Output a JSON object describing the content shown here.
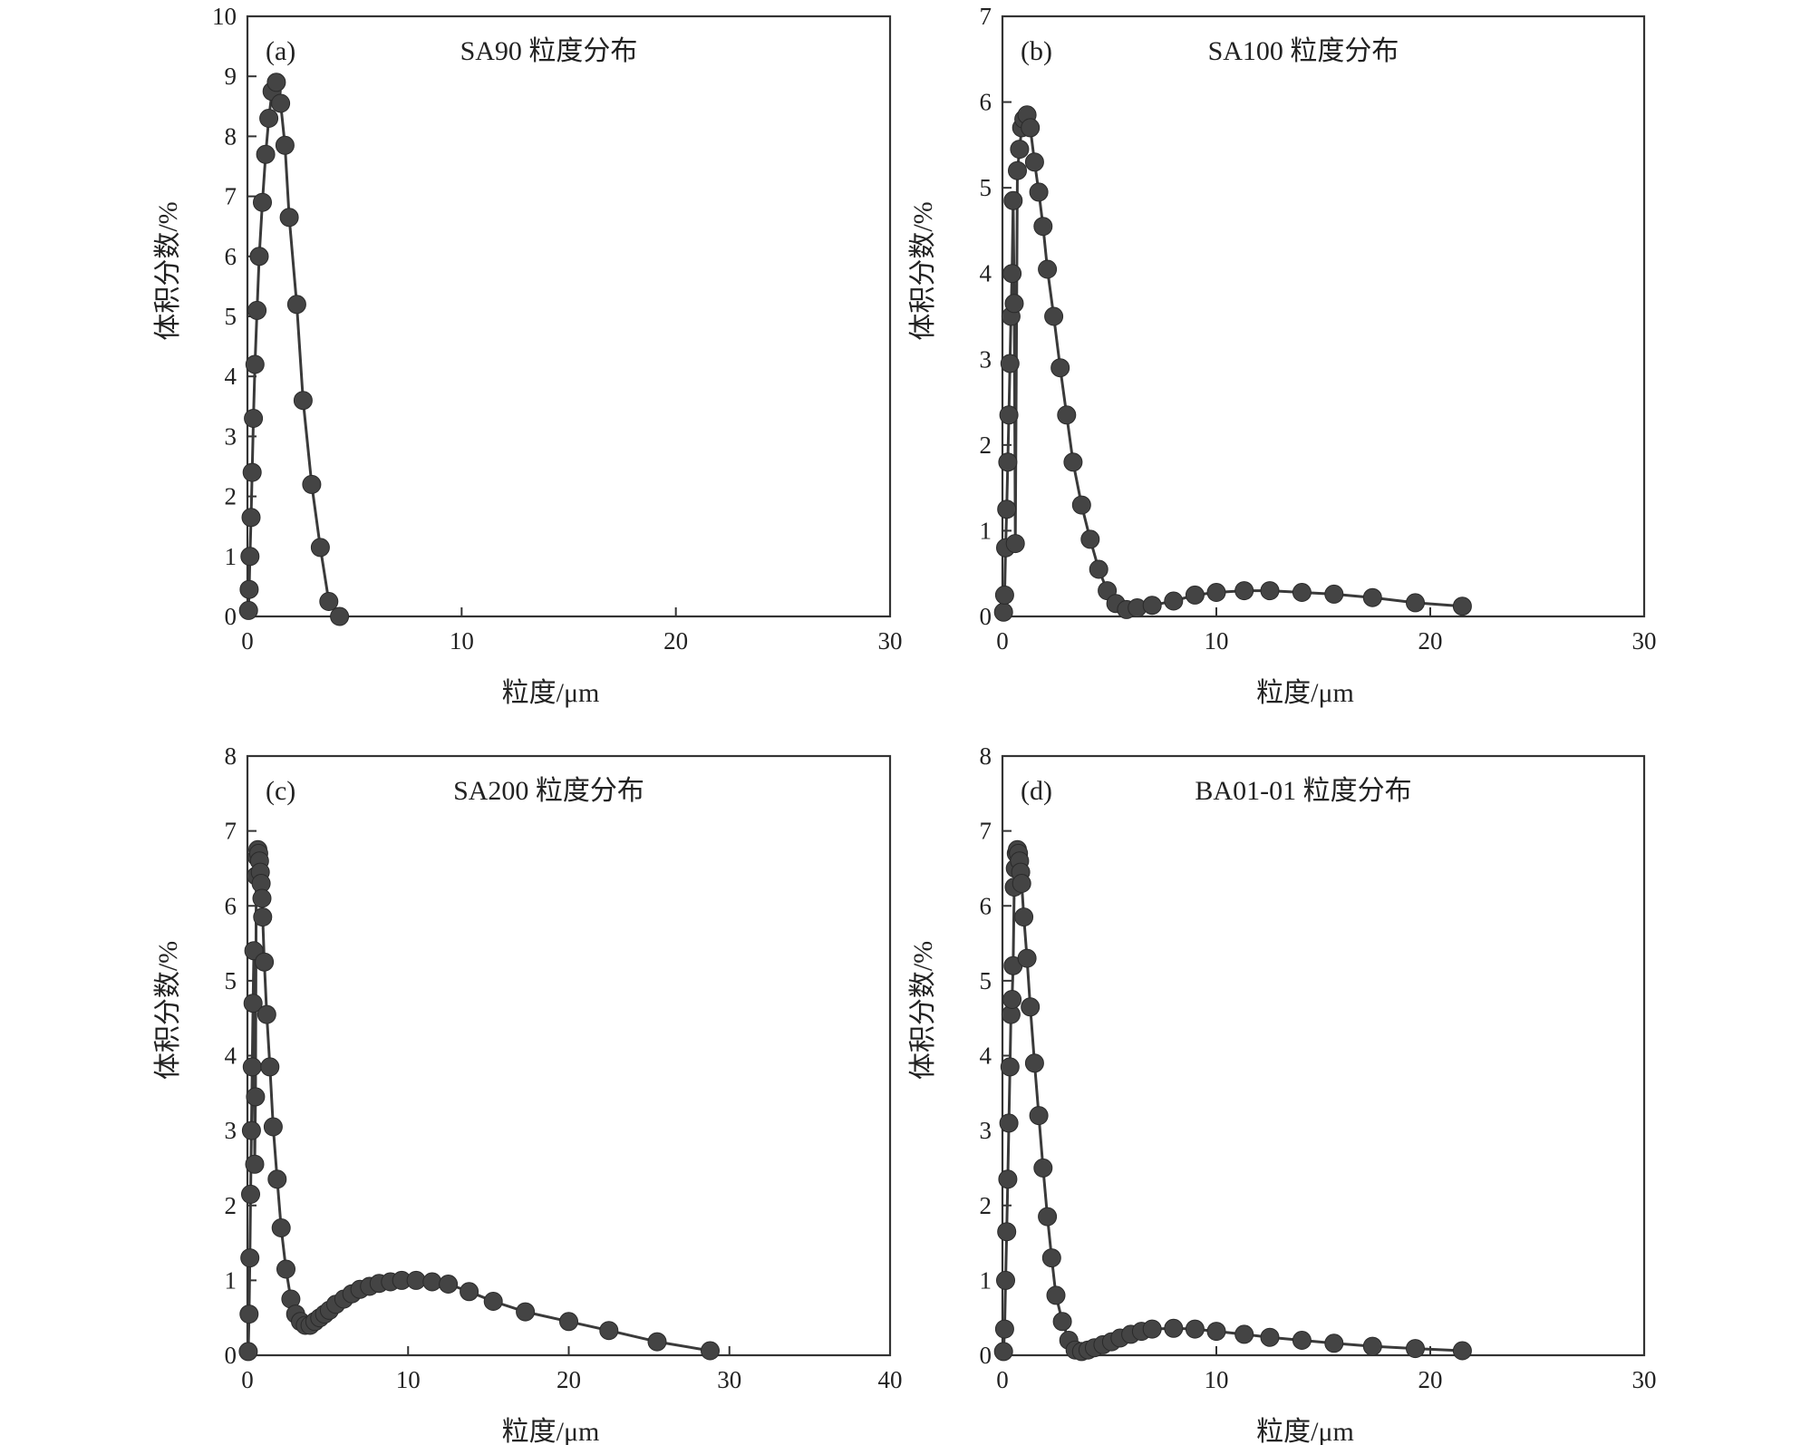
{
  "chart_data": [
    {
      "type": "line",
      "panel_label": "(a)",
      "title": "SA90 粒度分布",
      "xlabel": "粒度/μm",
      "ylabel": "体积分数/%",
      "xlim": [
        0,
        30
      ],
      "ylim": [
        0,
        10
      ],
      "xticks": [
        0,
        10,
        20,
        30
      ],
      "yticks": [
        0,
        1,
        2,
        3,
        4,
        5,
        6,
        7,
        8,
        9,
        10
      ],
      "x": [
        0.05,
        0.08,
        0.12,
        0.17,
        0.22,
        0.28,
        0.35,
        0.45,
        0.55,
        0.7,
        0.85,
        1.0,
        1.15,
        1.35,
        1.55,
        1.75,
        1.95,
        2.3,
        2.6,
        3.0,
        3.4,
        3.8,
        4.3
      ],
      "y": [
        0.1,
        0.45,
        1.0,
        1.65,
        2.4,
        3.3,
        4.2,
        5.1,
        6.0,
        6.9,
        7.7,
        8.3,
        8.75,
        8.9,
        8.55,
        7.85,
        6.65,
        5.2,
        3.6,
        2.2,
        1.15,
        0.25,
        0.0
      ]
    },
    {
      "type": "line",
      "panel_label": "(b)",
      "title": "SA100 粒度分布",
      "xlabel": "粒度/μm",
      "ylabel": "体积分数/%",
      "xlim": [
        0,
        30
      ],
      "ylim": [
        0,
        7
      ],
      "xticks": [
        0,
        10,
        20,
        30
      ],
      "yticks": [
        0,
        1,
        2,
        3,
        4,
        5,
        6,
        7
      ],
      "x": [
        0.05,
        0.1,
        0.15,
        0.2,
        0.25,
        0.3,
        0.35,
        0.4,
        0.45,
        0.5,
        0.55,
        0.6,
        0.7,
        0.8,
        0.9,
        1.0,
        1.15,
        1.3,
        1.5,
        1.7,
        1.9,
        2.1,
        2.4,
        2.7,
        3.0,
        3.3,
        3.7,
        4.1,
        4.5,
        4.9,
        5.3,
        5.8,
        6.3,
        7.0,
        8.0,
        9.0,
        10.0,
        11.3,
        12.5,
        14.0,
        15.5,
        17.3,
        19.3,
        21.5
      ],
      "y": [
        0.05,
        0.25,
        0.8,
        1.25,
        1.8,
        2.35,
        2.95,
        3.5,
        4.0,
        4.85,
        3.65,
        0.85,
        5.2,
        5.45,
        5.7,
        5.8,
        5.85,
        5.7,
        5.3,
        4.95,
        4.55,
        4.05,
        3.5,
        2.9,
        2.35,
        1.8,
        1.3,
        0.9,
        0.55,
        0.3,
        0.15,
        0.08,
        0.1,
        0.13,
        0.18,
        0.25,
        0.28,
        0.3,
        0.3,
        0.28,
        0.26,
        0.22,
        0.16,
        0.12
      ]
    },
    {
      "type": "line",
      "panel_label": "(c)",
      "title": "SA200 粒度分布",
      "xlabel": "粒度/μm",
      "ylabel": "体积分数/%",
      "xlim": [
        0,
        40
      ],
      "ylim": [
        0,
        8
      ],
      "xticks": [
        0,
        10,
        20,
        30,
        40
      ],
      "yticks": [
        0,
        1,
        2,
        3,
        4,
        5,
        6,
        7,
        8
      ],
      "x": [
        0.05,
        0.1,
        0.15,
        0.2,
        0.25,
        0.3,
        0.35,
        0.4,
        0.45,
        0.5,
        0.55,
        0.6,
        0.65,
        0.7,
        0.75,
        0.8,
        0.85,
        0.9,
        0.95,
        1.05,
        1.2,
        1.4,
        1.6,
        1.85,
        2.1,
        2.4,
        2.7,
        3.0,
        3.3,
        3.6,
        3.9,
        4.2,
        4.5,
        4.8,
        5.1,
        5.5,
        6.0,
        6.5,
        7.0,
        7.6,
        8.2,
        8.9,
        9.6,
        10.5,
        11.5,
        12.5,
        13.8,
        15.3,
        17.3,
        20.0,
        22.5,
        25.5,
        28.8
      ],
      "y": [
        0.05,
        0.55,
        1.3,
        2.15,
        3.0,
        3.85,
        4.7,
        5.4,
        2.55,
        3.45,
        6.4,
        6.65,
        6.75,
        6.7,
        6.6,
        6.45,
        6.3,
        6.1,
        5.85,
        5.25,
        4.55,
        3.85,
        3.05,
        2.35,
        1.7,
        1.15,
        0.75,
        0.55,
        0.45,
        0.4,
        0.4,
        0.45,
        0.5,
        0.55,
        0.6,
        0.68,
        0.75,
        0.82,
        0.88,
        0.92,
        0.96,
        0.98,
        1.0,
        1.0,
        0.98,
        0.95,
        0.85,
        0.72,
        0.58,
        0.45,
        0.33,
        0.18,
        0.06
      ]
    },
    {
      "type": "line",
      "panel_label": "(d)",
      "title": "BA01-01 粒度分布",
      "xlabel": "粒度/μm",
      "ylabel": "体积分数/%",
      "xlim": [
        0,
        30
      ],
      "ylim": [
        0,
        8
      ],
      "xticks": [
        0,
        10,
        20,
        30
      ],
      "yticks": [
        0,
        1,
        2,
        3,
        4,
        5,
        6,
        7,
        8
      ],
      "x": [
        0.05,
        0.1,
        0.15,
        0.2,
        0.25,
        0.3,
        0.35,
        0.4,
        0.45,
        0.5,
        0.55,
        0.6,
        0.65,
        0.7,
        0.75,
        0.8,
        0.85,
        0.9,
        1.0,
        1.15,
        1.3,
        1.5,
        1.7,
        1.9,
        2.1,
        2.3,
        2.5,
        2.8,
        3.1,
        3.4,
        3.7,
        4.0,
        4.3,
        4.7,
        5.1,
        5.5,
        6.0,
        6.5,
        7.0,
        8.0,
        9.0,
        10.0,
        11.3,
        12.5,
        14.0,
        15.5,
        17.3,
        19.3,
        21.5
      ],
      "y": [
        0.05,
        0.35,
        1.0,
        1.65,
        2.35,
        3.1,
        3.85,
        4.55,
        4.75,
        5.2,
        6.25,
        6.5,
        6.7,
        6.75,
        6.7,
        6.6,
        6.45,
        6.3,
        5.85,
        5.3,
        4.65,
        3.9,
        3.2,
        2.5,
        1.85,
        1.3,
        0.8,
        0.45,
        0.2,
        0.07,
        0.05,
        0.07,
        0.1,
        0.14,
        0.18,
        0.23,
        0.28,
        0.32,
        0.35,
        0.36,
        0.35,
        0.32,
        0.28,
        0.24,
        0.2,
        0.16,
        0.12,
        0.09,
        0.06
      ]
    }
  ]
}
